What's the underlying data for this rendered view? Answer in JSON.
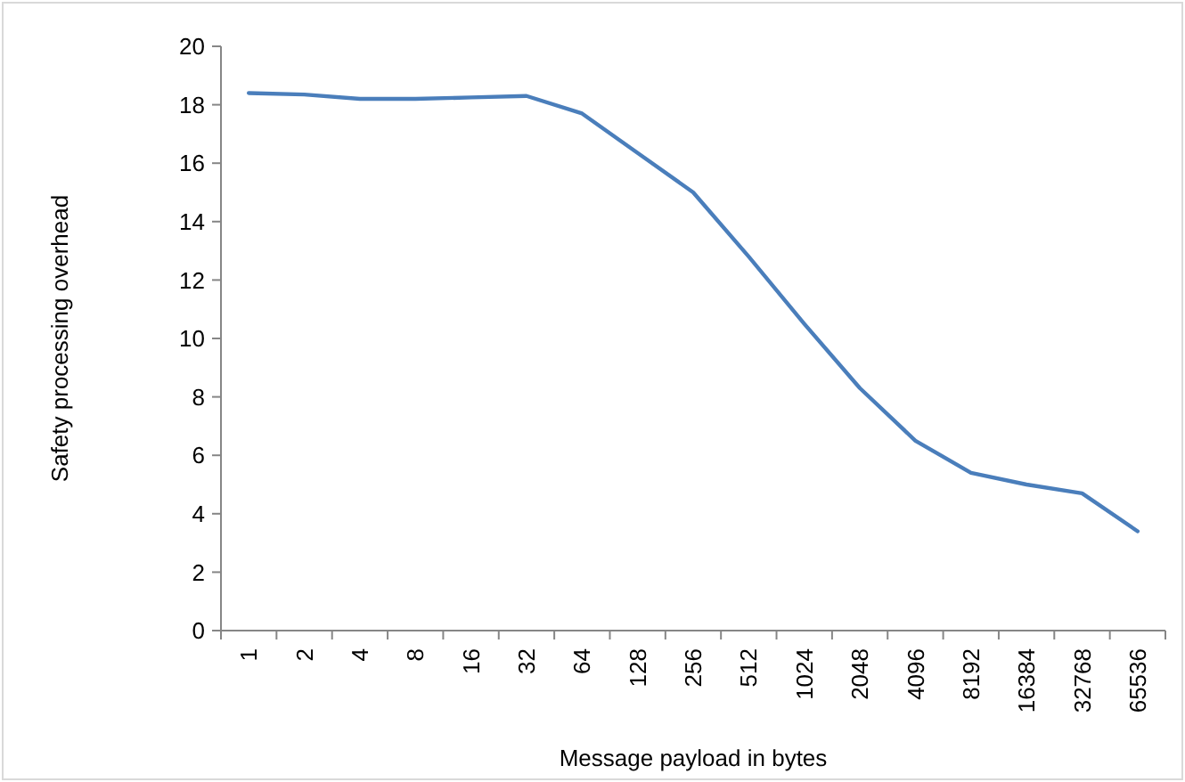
{
  "chart_data": {
    "type": "line",
    "xlabel": "Message payload in bytes",
    "ylabel": "Safety processing overhead",
    "categories": [
      "1",
      "2",
      "4",
      "8",
      "16",
      "32",
      "64",
      "128",
      "256",
      "512",
      "1024",
      "2048",
      "4096",
      "8192",
      "16384",
      "32768",
      "65536"
    ],
    "series": [
      {
        "color": "#4a7ebb",
        "values": [
          18.4,
          18.35,
          18.2,
          18.2,
          18.25,
          18.3,
          17.7,
          16.35,
          15.0,
          12.8,
          10.5,
          8.3,
          6.5,
          5.4,
          5.0,
          4.7,
          3.4
        ]
      }
    ],
    "ylim": [
      0,
      20
    ],
    "yticks": [
      0,
      2,
      4,
      6,
      8,
      10,
      12,
      14,
      16,
      18,
      20
    ],
    "grid": false,
    "marker": "none",
    "line_style": "solid"
  }
}
